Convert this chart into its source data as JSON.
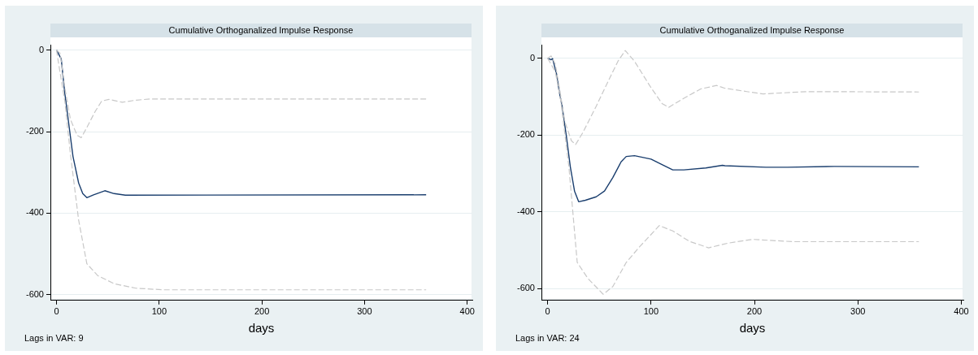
{
  "chart_data": [
    {
      "type": "line",
      "title": "Cumulative Orthoganalized Impulse Response",
      "xlabel": "days",
      "annotations": [
        "Lags in VAR: 9"
      ],
      "xlim": [
        -6,
        405
      ],
      "ylim": [
        -614,
        12
      ],
      "xticks": [
        0,
        100,
        200,
        300,
        400
      ],
      "yticks": [
        0,
        -200,
        -400,
        -600
      ],
      "grid": "y",
      "marker": "none",
      "series": [
        {
          "color": "#c8c8c8",
          "line_style": "dashed",
          "x": [
            0,
            3.5,
            8,
            13.5,
            20,
            24,
            29.5,
            37.5,
            44,
            51,
            64,
            77,
            91,
            360
          ],
          "values": [
            0,
            -8,
            -92,
            -170,
            -209,
            -215,
            -190,
            -151,
            -125,
            -121,
            -128,
            -123,
            -120,
            -120
          ]
        },
        {
          "color": "#c8c8c8",
          "line_style": "dashed",
          "x": [
            0,
            1.6,
            8,
            13.5,
            21.5,
            29.5,
            40,
            56,
            77,
            104,
            360
          ],
          "values": [
            0,
            -27,
            -125,
            -255,
            -417,
            -524,
            -553,
            -573,
            -584,
            -588,
            -588
          ]
        },
        {
          "color": "#1a3e6e",
          "line_style": "solid",
          "x": [
            0,
            3.5,
            4.5,
            8,
            12,
            16,
            21.5,
            25.5,
            29.5,
            36,
            47,
            56,
            67,
            360
          ],
          "values": [
            0,
            -17,
            -21,
            -105,
            -183,
            -261,
            -326,
            -352,
            -362,
            -355,
            -345,
            -352,
            -356,
            -355
          ]
        }
      ]
    },
    {
      "type": "line",
      "title": "Cumulative Orthoganalized Impulse Response",
      "xlabel": "days",
      "annotations": [
        "Lags in VAR: 24"
      ],
      "xlim": [
        -6,
        402
      ],
      "ylim": [
        -631,
        34
      ],
      "xticks": [
        0,
        100,
        200,
        300,
        400
      ],
      "yticks": [
        0,
        -200,
        -400,
        -600
      ],
      "grid": "y",
      "marker": "none",
      "series": [
        {
          "color": "#c8c8c8",
          "line_style": "dashed",
          "x": [
            0,
            3.4,
            7.4,
            11.4,
            16.7,
            23,
            27,
            34,
            47,
            58,
            68,
            75,
            84,
            100,
            110.6,
            117,
            132,
            148,
            163.5,
            171,
            192.6,
            208.5,
            251,
            359
          ],
          "values": [
            0,
            6,
            -15,
            -77,
            -166,
            -215,
            -225,
            -194,
            -125,
            -63,
            -8,
            20,
            -8,
            -77,
            -118,
            -128,
            -104,
            -80,
            -71,
            -78,
            -87,
            -93,
            -87,
            -88
          ]
        },
        {
          "color": "#c8c8c8",
          "line_style": "dashed",
          "x": [
            0,
            7.4,
            12.7,
            20.6,
            28.6,
            39,
            53.7,
            63,
            76,
            89,
            108,
            121,
            137,
            155.6,
            174,
            198,
            237.6,
            277,
            359
          ],
          "values": [
            0,
            -35,
            -111,
            -284,
            -532,
            -574,
            -615,
            -595,
            -532,
            -491,
            -436,
            -450,
            -477,
            -494,
            -482,
            -472,
            -478,
            -478,
            -478
          ]
        },
        {
          "color": "#1a3e6e",
          "line_style": "solid",
          "x": [
            0,
            3.4,
            4.8,
            8.7,
            11.4,
            14,
            18,
            22,
            26,
            30,
            36.5,
            47,
            55,
            63,
            71,
            76,
            84,
            100,
            110.6,
            121,
            131.7,
            153,
            169,
            171.4,
            211,
            232,
            277,
            359
          ],
          "values": [
            0,
            -4,
            -1,
            -42,
            -90,
            -125,
            -201,
            -284,
            -346,
            -374,
            -370,
            -361,
            -346,
            -311,
            -270,
            -256,
            -254,
            -263,
            -277,
            -291,
            -291,
            -286,
            -279,
            -280,
            -284,
            -284,
            -282,
            -283
          ]
        }
      ]
    }
  ]
}
